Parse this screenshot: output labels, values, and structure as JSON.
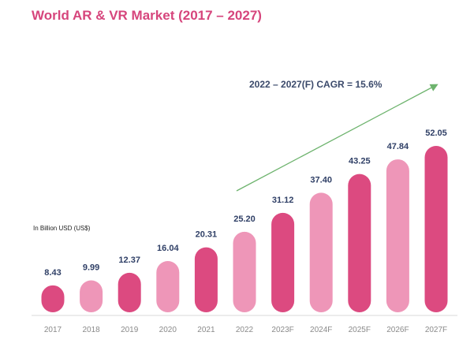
{
  "title": "World AR & VR Market (2017 – 2027)",
  "unit_label": "In Billion USD (US$)",
  "cagr_label": "2022 – 2027(F) CAGR = 15.6%",
  "colors": {
    "title": "#d6457c",
    "bar_dark": "#dc4a80",
    "bar_light": "#ee96b8",
    "value_text": "#2f3f66",
    "tick_text": "#8a8a8a",
    "axis_line": "#d9d9d9",
    "trend_arrow": "#6db36d"
  },
  "chart_data": {
    "type": "bar",
    "title": "World AR & VR Market (2017 – 2027)",
    "ylabel": "In Billion USD (US$)",
    "xlabel": "",
    "categories": [
      "2017",
      "2018",
      "2019",
      "2020",
      "2021",
      "2022",
      "2023F",
      "2024F",
      "2025F",
      "2026F",
      "2027F"
    ],
    "values": [
      8.43,
      9.99,
      12.37,
      16.04,
      20.31,
      25.2,
      31.12,
      37.4,
      43.25,
      47.84,
      52.05
    ],
    "value_labels": [
      "8.43",
      "9.99",
      "12.37",
      "16.04",
      "20.31",
      "25.20",
      "31.12",
      "37.40",
      "43.25",
      "47.84",
      "52.05"
    ],
    "bar_shades": [
      "dark",
      "light",
      "dark",
      "light",
      "dark",
      "light",
      "dark",
      "light",
      "dark",
      "light",
      "dark"
    ],
    "ylim": [
      0,
      55
    ],
    "grid": false,
    "legend": "none",
    "annotation": "2022 – 2027(F) CAGR = 15.6%"
  }
}
